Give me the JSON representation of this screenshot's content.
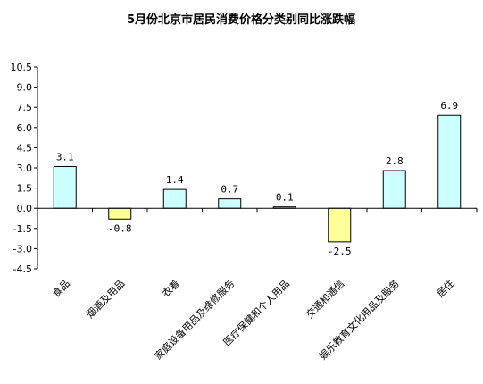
{
  "chart_data": {
    "type": "bar",
    "title": "5月份北京市居民消费价格分类别同比涨跌幅",
    "categories": [
      "食品",
      "烟酒及用品",
      "衣着",
      "家庭设备用品及维修服务",
      "医疗保健和个人用品",
      "交通和通信",
      "娱乐教育文化用品及服务",
      "居住"
    ],
    "values": [
      3.1,
      -0.8,
      1.4,
      0.7,
      0.1,
      -2.5,
      2.8,
      6.9
    ],
    "data_labels": [
      "3.1",
      "-0.8",
      "1.4",
      "0.7",
      "0.1",
      "-2.5",
      "2.8",
      "6.9"
    ],
    "ylim": [
      -4.5,
      10.5
    ],
    "yticks": [
      10.5,
      9.0,
      7.5,
      6.0,
      4.5,
      3.0,
      1.5,
      0.0,
      -1.5,
      -3.0,
      -4.5
    ],
    "ytick_labels": [
      "10.5",
      "9.0",
      "7.5",
      "6.0",
      "4.5",
      "3.0",
      "1.5",
      "0.0",
      "-1.5",
      "-3.0",
      "-4.5"
    ],
    "xlabel": "",
    "ylabel": "",
    "grid": false,
    "colors": {
      "positive_fill": "#ccffff",
      "negative_fill": "#ffff99",
      "bar_stroke": "#000000",
      "axis": "#000000"
    }
  }
}
